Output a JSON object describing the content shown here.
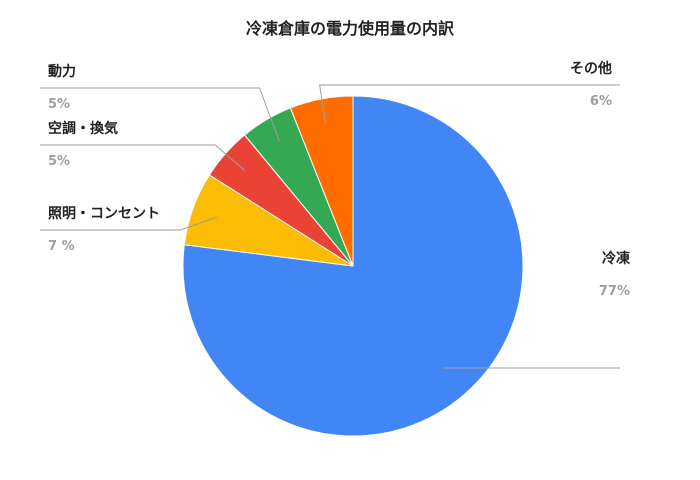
{
  "chart_data": {
    "type": "pie",
    "title": "冷凍倉庫の電力使用量の内訳",
    "slices": [
      {
        "label": "冷凍",
        "value": 77,
        "display": "77%",
        "color": "#4285f4"
      },
      {
        "label": "照明・コンセント",
        "value": 7,
        "display": "7 %",
        "color": "#fbbc04"
      },
      {
        "label": "空調・換気",
        "value": 5,
        "display": "5%",
        "color": "#ea4335"
      },
      {
        "label": "動力",
        "value": 5,
        "display": "5%",
        "color": "#34a853"
      },
      {
        "label": "その他",
        "value": 6,
        "display": "6%",
        "color": "#ff6d01"
      }
    ],
    "legend": "none",
    "start_angle": "12 o'clock",
    "direction": "clockwise"
  }
}
